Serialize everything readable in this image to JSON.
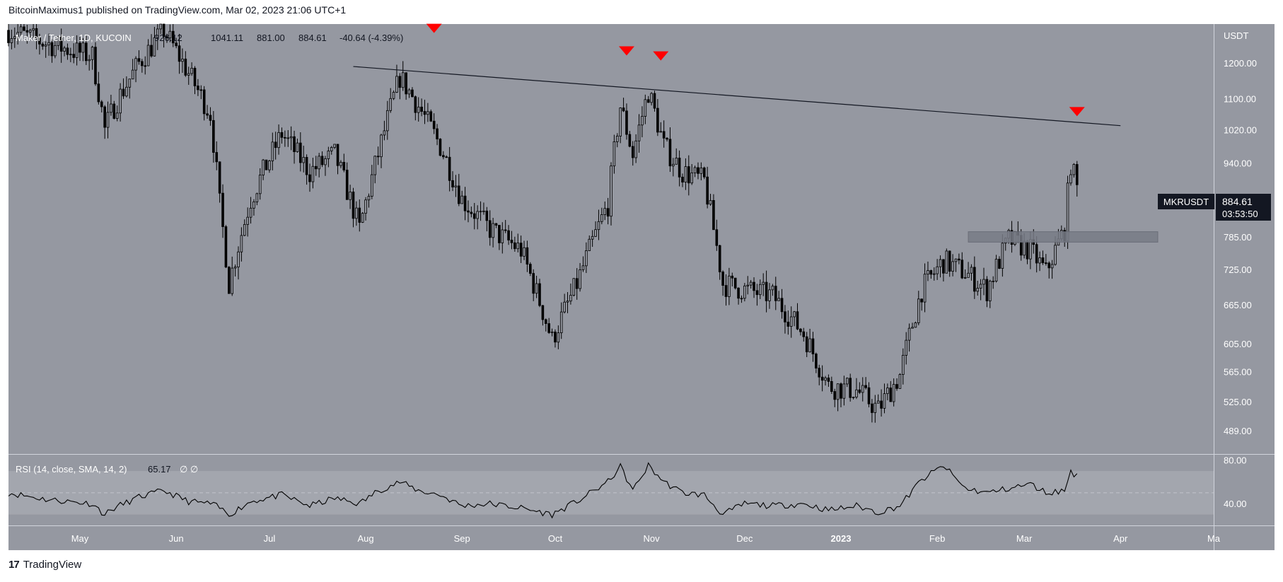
{
  "publisher_line": "BitcoinMaximus1 published on TradingView.com, Mar 02, 2023 21:06 UTC+1",
  "footer": {
    "logo_glyph": "17",
    "brand": "TradingView"
  },
  "colors": {
    "panel_bg": "#9598a1",
    "candle": "#000000",
    "marker": "#ff0000",
    "resistance_line": "#131722",
    "support_box": "#787b86",
    "label_bg": "#131722",
    "label_text": "#ffffff"
  },
  "chart_data": {
    "type": "candlestick",
    "symbol_legend": {
      "pair": "Maker / Tether, 1D, KUCOIN",
      "open": "926.12",
      "high": "1041.11",
      "low": "881.00",
      "close": "884.61",
      "change": "-40.64 (-4.39%)"
    },
    "currency": "USDT",
    "price_scale": "log",
    "price_ticks": [
      "1200.00",
      "1100.00",
      "1020.00",
      "940.00",
      "785.00",
      "725.00",
      "665.00",
      "605.00",
      "565.00",
      "525.00",
      "489.00"
    ],
    "time_ticks": [
      "May",
      "Jun",
      "Jul",
      "Aug",
      "Sep",
      "Oct",
      "Nov",
      "Dec",
      "2023",
      "Feb",
      "Mar",
      "Apr",
      "Ma"
    ],
    "x_range": [
      "2022-04-08",
      "2023-05-01"
    ],
    "y_range": [
      462,
      1320
    ],
    "last_price_label": {
      "symbol": "MKRUSDT",
      "price": "884.61",
      "countdown": "03:53:50"
    },
    "close_path": [
      [
        "2022-04-08",
        1300
      ],
      [
        "2022-04-20",
        1260
      ],
      [
        "2022-05-05",
        1220
      ],
      [
        "2022-05-09",
        1020
      ],
      [
        "2022-05-12",
        1080
      ],
      [
        "2022-05-20",
        1200
      ],
      [
        "2022-05-28",
        1300
      ],
      [
        "2022-06-05",
        1170
      ],
      [
        "2022-06-12",
        1060
      ],
      [
        "2022-06-15",
        850
      ],
      [
        "2022-06-18",
        700
      ],
      [
        "2022-06-25",
        860
      ],
      [
        "2022-07-05",
        1010
      ],
      [
        "2022-07-14",
        920
      ],
      [
        "2022-07-22",
        960
      ],
      [
        "2022-07-30",
        800
      ],
      [
        "2022-08-05",
        960
      ],
      [
        "2022-08-12",
        1160
      ],
      [
        "2022-08-18",
        1080
      ],
      [
        "2022-08-25",
        980
      ],
      [
        "2022-09-01",
        860
      ],
      [
        "2022-09-10",
        800
      ],
      [
        "2022-09-20",
        760
      ],
      [
        "2022-09-30",
        610
      ],
      [
        "2022-10-08",
        700
      ],
      [
        "2022-10-18",
        850
      ],
      [
        "2022-10-22",
        1080
      ],
      [
        "2022-10-26",
        960
      ],
      [
        "2022-10-31",
        1120
      ],
      [
        "2022-11-05",
        980
      ],
      [
        "2022-11-11",
        920
      ],
      [
        "2022-11-18",
        900
      ],
      [
        "2022-11-24",
        700
      ],
      [
        "2022-12-01",
        690
      ],
      [
        "2022-12-10",
        680
      ],
      [
        "2022-12-20",
        620
      ],
      [
        "2022-12-28",
        545
      ],
      [
        "2023-01-06",
        540
      ],
      [
        "2023-01-13",
        515
      ],
      [
        "2023-01-20",
        560
      ],
      [
        "2023-01-27",
        690
      ],
      [
        "2023-02-03",
        740
      ],
      [
        "2023-02-10",
        720
      ],
      [
        "2023-02-17",
        690
      ],
      [
        "2023-02-24",
        780
      ],
      [
        "2023-03-03",
        760
      ],
      [
        "2023-03-08",
        720
      ],
      [
        "2023-03-14",
        800
      ],
      [
        "2023-03-16",
        940
      ],
      [
        "2023-03-18",
        884
      ]
    ],
    "resistance_line": {
      "from": [
        "2022-07-28",
        1190
      ],
      "to": [
        "2023-04-01",
        1030
      ]
    },
    "support_zone": {
      "from": "2023-02-11",
      "to": "2023-04-13",
      "low": 775,
      "high": 795
    },
    "rejection_markers": [
      {
        "date": "2022-08-23",
        "price": 1305
      },
      {
        "date": "2022-10-24",
        "price": 1235
      },
      {
        "date": "2022-11-04",
        "price": 1220
      },
      {
        "date": "2023-03-18",
        "price": 1065
      }
    ],
    "rsi": {
      "label": "RSI (14, close, SMA, 14, 2)",
      "value": "65.17",
      "extra": "∅ ∅",
      "ticks": [
        "80.00",
        "40.00"
      ],
      "band": [
        30,
        70
      ],
      "range": [
        20,
        85
      ],
      "path": [
        [
          "2022-04-08",
          50
        ],
        [
          "2022-04-20",
          44
        ],
        [
          "2022-05-05",
          40
        ],
        [
          "2022-05-09",
          30
        ],
        [
          "2022-05-12",
          36
        ],
        [
          "2022-05-20",
          46
        ],
        [
          "2022-05-28",
          52
        ],
        [
          "2022-06-05",
          42
        ],
        [
          "2022-06-12",
          40
        ],
        [
          "2022-06-15",
          36
        ],
        [
          "2022-06-18",
          30
        ],
        [
          "2022-06-25",
          42
        ],
        [
          "2022-07-05",
          48
        ],
        [
          "2022-07-14",
          38
        ],
        [
          "2022-07-22",
          45
        ],
        [
          "2022-07-30",
          40
        ],
        [
          "2022-08-05",
          52
        ],
        [
          "2022-08-12",
          60
        ],
        [
          "2022-08-18",
          52
        ],
        [
          "2022-08-25",
          48
        ],
        [
          "2022-09-01",
          38
        ],
        [
          "2022-09-10",
          40
        ],
        [
          "2022-09-20",
          36
        ],
        [
          "2022-09-30",
          30
        ],
        [
          "2022-10-08",
          42
        ],
        [
          "2022-10-18",
          60
        ],
        [
          "2022-10-22",
          74
        ],
        [
          "2022-10-26",
          52
        ],
        [
          "2022-10-31",
          75
        ],
        [
          "2022-11-05",
          60
        ],
        [
          "2022-11-11",
          50
        ],
        [
          "2022-11-18",
          48
        ],
        [
          "2022-11-24",
          30
        ],
        [
          "2022-12-01",
          40
        ],
        [
          "2022-12-10",
          38
        ],
        [
          "2022-12-20",
          40
        ],
        [
          "2022-12-28",
          34
        ],
        [
          "2023-01-06",
          38
        ],
        [
          "2023-01-13",
          32
        ],
        [
          "2023-01-20",
          38
        ],
        [
          "2023-01-27",
          62
        ],
        [
          "2023-02-03",
          75
        ],
        [
          "2023-02-10",
          54
        ],
        [
          "2023-02-17",
          50
        ],
        [
          "2023-02-24",
          54
        ],
        [
          "2023-03-03",
          58
        ],
        [
          "2023-03-08",
          50
        ],
        [
          "2023-03-14",
          52
        ],
        [
          "2023-03-16",
          70
        ],
        [
          "2023-03-18",
          65
        ]
      ]
    }
  }
}
